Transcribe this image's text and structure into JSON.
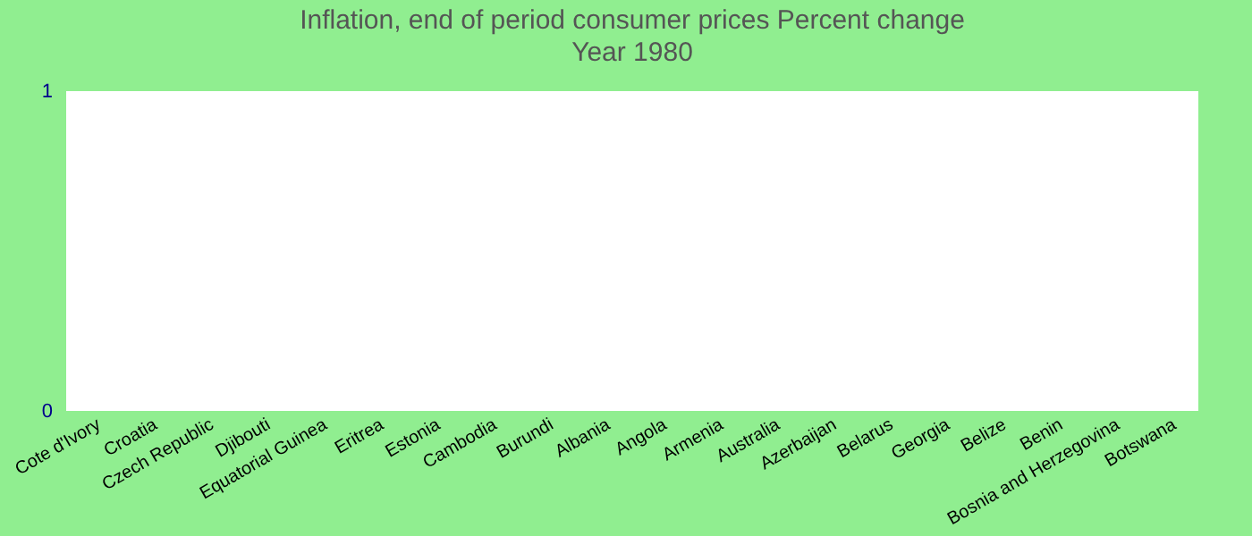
{
  "chart_data": {
    "type": "bar",
    "title": "Inflation, end of period consumer prices  Percent change",
    "subtitle": "Year 1980",
    "categories": [
      "Cote d'Ivory",
      "Croatia",
      "Czech Republic",
      "Djibouti",
      "Equatorial Guinea",
      "Eritrea",
      "Estonia",
      "Cambodia",
      "Burundi",
      "Albania",
      "Angola",
      "Armenia",
      "Australia",
      "Azerbaijan",
      "Belarus",
      "Georgia",
      "Belize",
      "Benin",
      "Bosnia and Herzegovina",
      "Botswana"
    ],
    "values": [
      null,
      null,
      null,
      null,
      null,
      null,
      null,
      null,
      null,
      null,
      null,
      null,
      null,
      null,
      null,
      null,
      null,
      null,
      null,
      null
    ],
    "ylim": [
      0,
      1
    ],
    "yticks": [
      0,
      1
    ],
    "grid": false
  }
}
